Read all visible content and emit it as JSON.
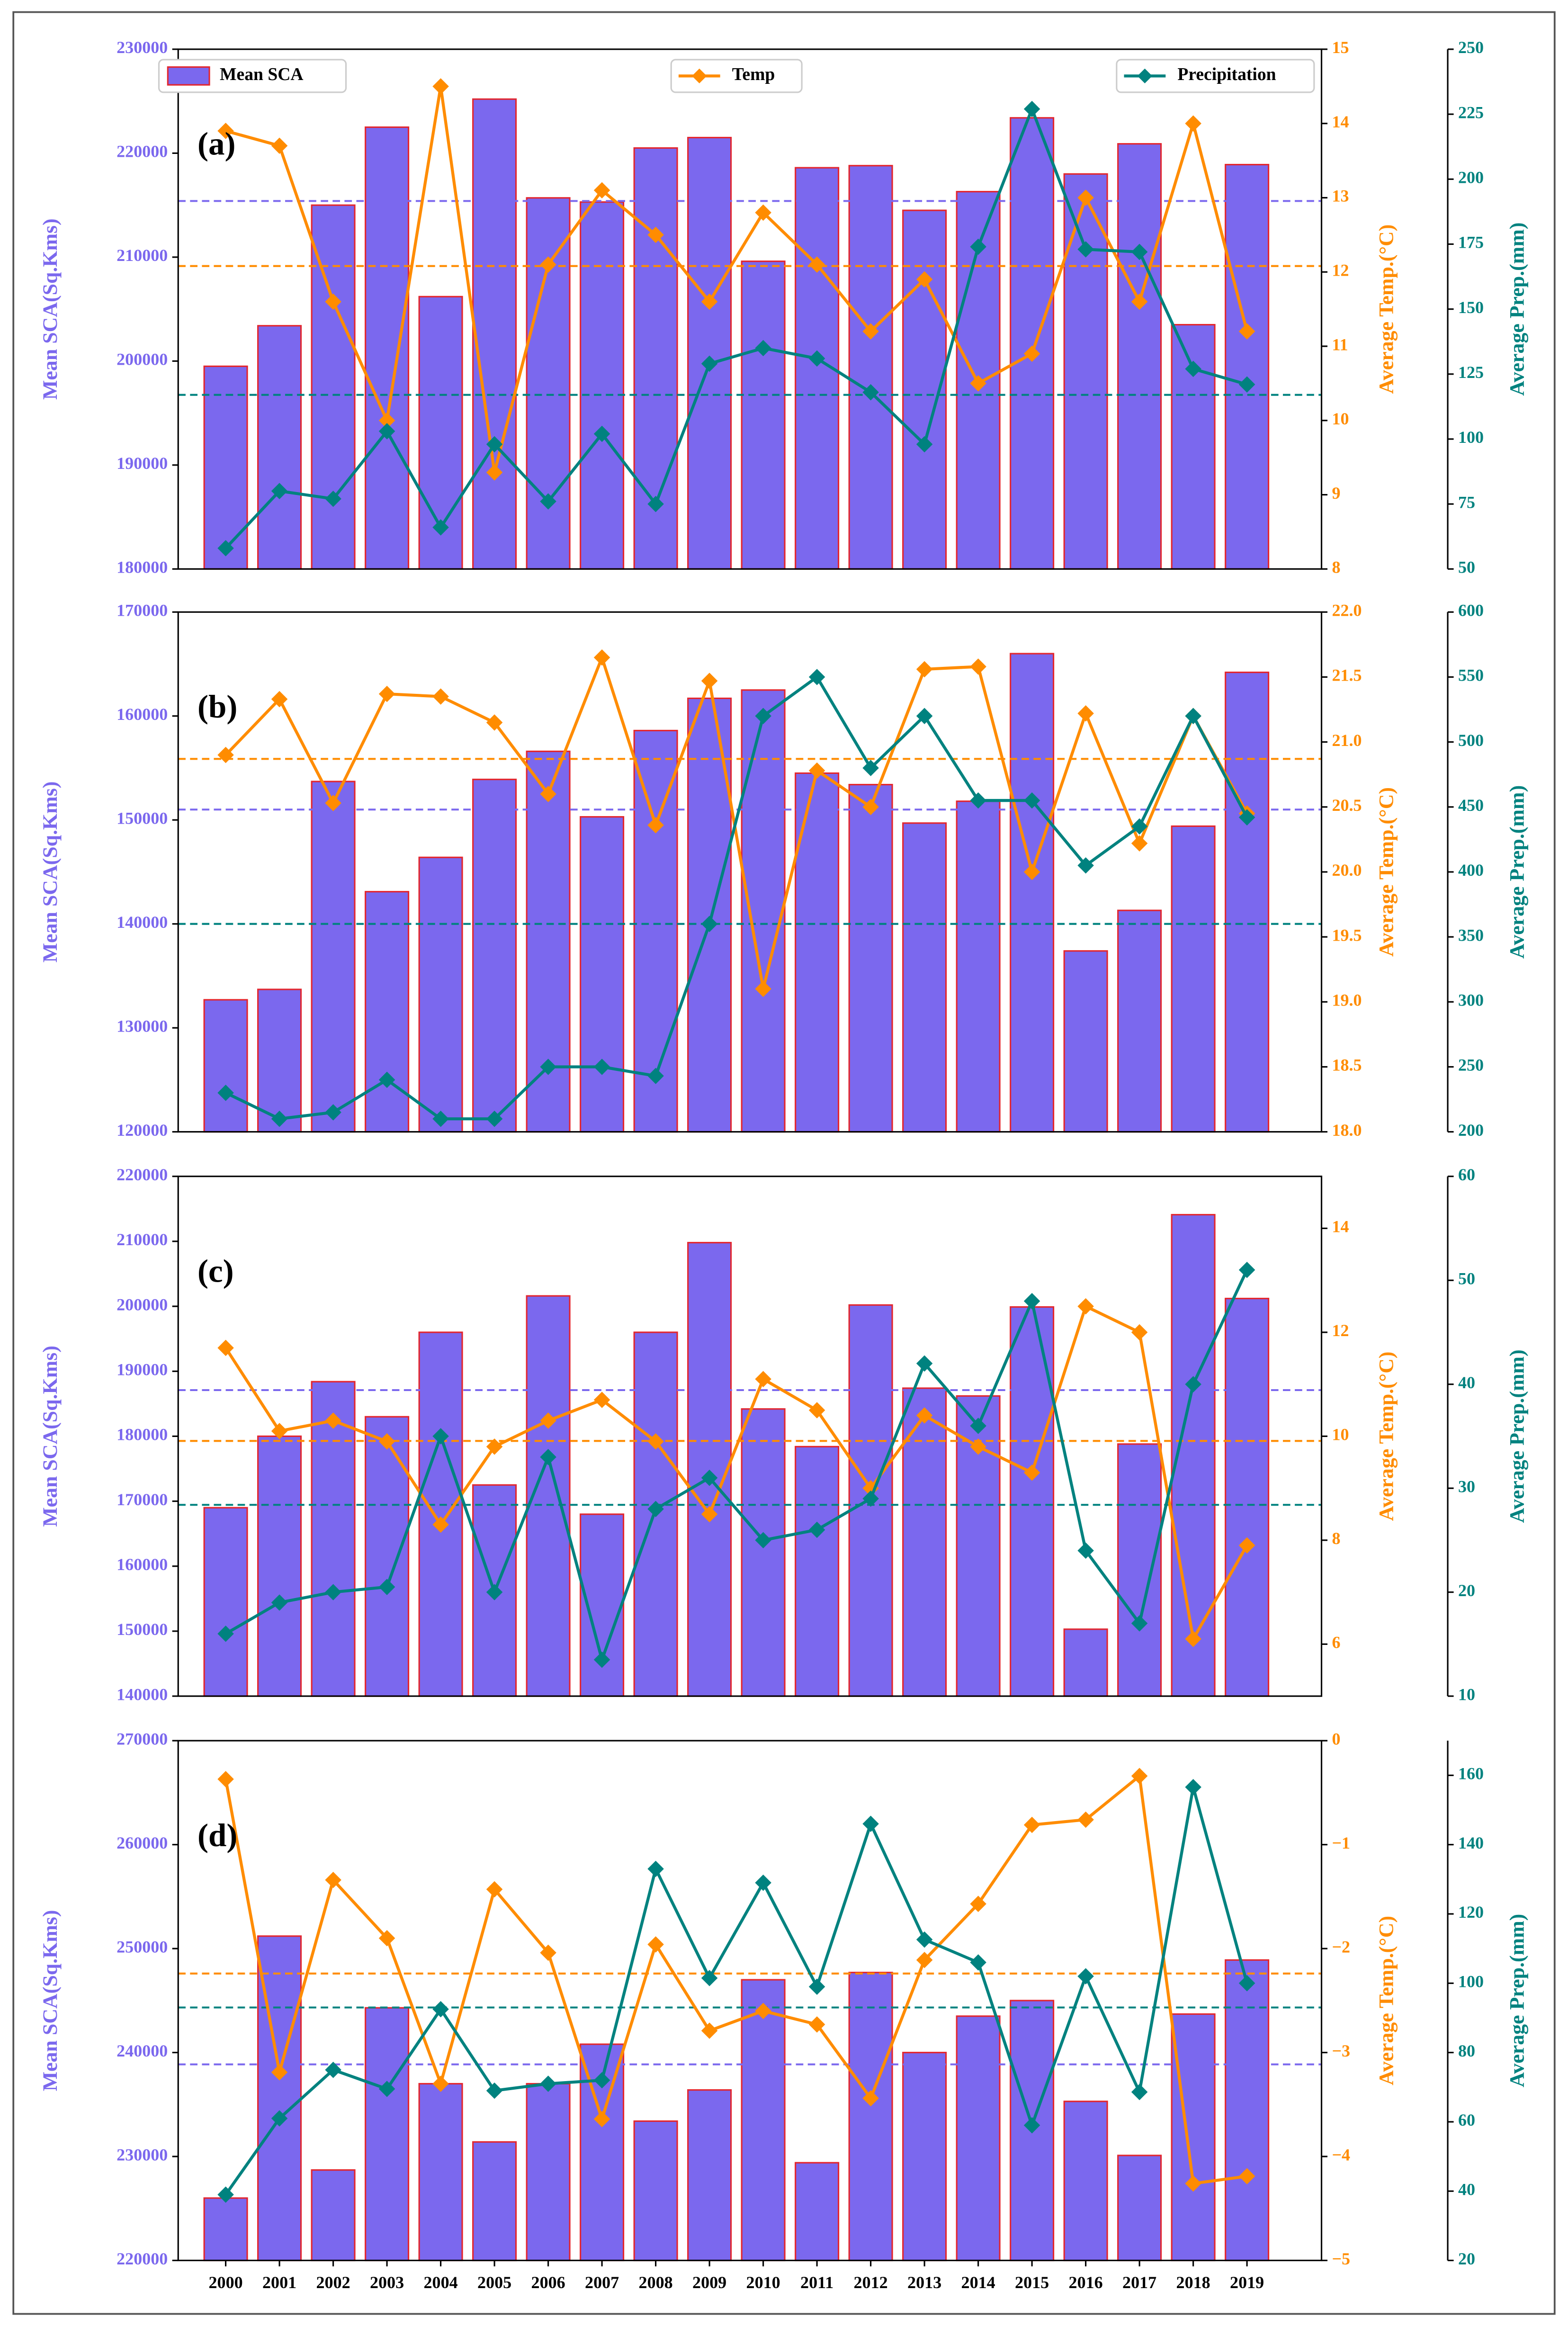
{
  "chart_data": [
    {
      "type": "bar_line",
      "label": "(a)",
      "ylabel": "Mean SCA(Sq.Kms)",
      "y2label": "Average Temp.(°C)",
      "y3label": "Average Prep.(mm)",
      "ylim": [
        180000,
        230000
      ],
      "yticks": [
        180000,
        190000,
        200000,
        210000,
        220000,
        230000
      ],
      "y2lim": [
        8,
        15
      ],
      "y2ticks": [
        8,
        9,
        10,
        11,
        12,
        13,
        14,
        15
      ],
      "y3lim": [
        50,
        250
      ],
      "y3ticks": [
        50,
        75,
        100,
        125,
        150,
        175,
        200,
        225,
        250
      ],
      "series": [
        {
          "name": "Mean SCA",
          "color": "#7b68ee",
          "edgecolor": "#e3262e",
          "values": [
            199500,
            203400,
            215000,
            222500,
            206200,
            225200,
            215700,
            215300,
            220500,
            221500,
            209600,
            218600,
            218800,
            214500,
            216300,
            223400,
            218000,
            220900,
            203500,
            218900
          ]
        },
        {
          "name": "Temp",
          "color": "#ff8c00",
          "axis": "y2",
          "values": [
            13.9,
            13.7,
            11.6,
            10.0,
            14.5,
            9.3,
            12.1,
            13.1,
            12.5,
            11.6,
            12.8,
            12.1,
            11.2,
            11.9,
            10.5,
            10.9,
            13.0,
            11.6,
            14.0,
            11.2
          ]
        },
        {
          "name": "Precipitation",
          "color": "#00827f",
          "axis": "y3",
          "values": [
            58,
            80,
            77,
            103,
            66,
            98,
            76,
            102,
            75,
            129,
            135,
            131,
            118,
            98,
            174,
            227,
            173,
            172,
            127,
            121
          ]
        }
      ],
      "mean_lines": [
        {
          "axis": "y",
          "value": 215400,
          "color": "#7b68ee"
        },
        {
          "axis": "y2",
          "value": 12.08,
          "color": "#ff8c00"
        },
        {
          "axis": "y3",
          "value": 117,
          "color": "#00827f"
        }
      ]
    },
    {
      "type": "bar_line",
      "label": "(b)",
      "ylabel": "Mean SCA(Sq.Kms)",
      "y2label": "Average Temp.(°C)",
      "y3label": "Average Prep.(mm)",
      "ylim": [
        120000,
        170000
      ],
      "yticks": [
        120000,
        130000,
        140000,
        150000,
        160000,
        170000
      ],
      "y2lim": [
        18,
        22
      ],
      "y2ticks": [
        {
          "value": 18,
          "label": "18.0"
        },
        18.5,
        {
          "value": 19,
          "label": "19.0"
        },
        19.5,
        {
          "value": 20,
          "label": "20.0"
        },
        20.5,
        {
          "value": 21,
          "label": "21.0"
        },
        21.5,
        {
          "value": 22,
          "label": "22.0"
        }
      ],
      "y3lim": [
        200,
        600
      ],
      "y3ticks": [
        200,
        250,
        300,
        350,
        400,
        450,
        500,
        550,
        600
      ],
      "series": [
        {
          "color": "#7b68ee",
          "edgecolor": "#e3262e",
          "values": [
            132700,
            133700,
            153700,
            143100,
            146400,
            153900,
            156600,
            150300,
            158600,
            161700,
            162500,
            154500,
            153400,
            149700,
            151800,
            166000,
            137400,
            141300,
            149400,
            164200
          ]
        },
        {
          "color": "#ff8c00",
          "axis": "y2",
          "values": [
            20.9,
            21.33,
            20.53,
            21.37,
            21.35,
            21.15,
            20.6,
            21.65,
            20.36,
            21.47,
            19.1,
            20.78,
            20.5,
            21.56,
            21.58,
            20.0,
            21.22,
            20.22,
            21.2,
            20.45
          ]
        },
        {
          "color": "#00827f",
          "axis": "y3",
          "values": [
            230,
            210,
            215,
            240,
            210,
            210,
            250,
            250,
            243,
            360,
            520,
            550,
            480,
            520,
            455,
            455,
            405,
            435,
            520,
            442
          ]
        }
      ],
      "mean_lines": [
        {
          "axis": "y",
          "value": 151000,
          "color": "#7b68ee"
        },
        {
          "axis": "y2",
          "value": 20.87,
          "color": "#ff8c00"
        },
        {
          "axis": "y3",
          "value": 360,
          "color": "#00827f"
        }
      ]
    },
    {
      "type": "bar_line",
      "label": "(c)",
      "ylabel": "Mean SCA(Sq.Kms)",
      "y2label": "Average Temp.(°C)",
      "y3label": "Average Prep.(mm)",
      "ylim": [
        140000,
        220000
      ],
      "yticks": [
        140000,
        150000,
        160000,
        170000,
        180000,
        190000,
        200000,
        210000,
        220000
      ],
      "y2lim": [
        5,
        15
      ],
      "y2ticks": [
        6,
        8,
        10,
        12,
        14
      ],
      "y3lim": [
        10,
        60
      ],
      "y3ticks": [
        10,
        20,
        30,
        40,
        50,
        60
      ],
      "series": [
        {
          "color": "#7b68ee",
          "edgecolor": "#e3262e",
          "values": [
            169000,
            180000,
            188400,
            183000,
            196000,
            172500,
            201600,
            168000,
            196000,
            209800,
            184200,
            178400,
            200200,
            187400,
            186200,
            199900,
            150300,
            178800,
            214100,
            201200
          ]
        },
        {
          "color": "#ff8c00",
          "axis": "y2",
          "values": [
            11.7,
            10.1,
            10.3,
            9.9,
            8.3,
            9.8,
            10.3,
            10.7,
            9.9,
            8.5,
            11.1,
            10.5,
            9.0,
            10.4,
            9.8,
            9.3,
            12.5,
            12.0,
            6.1,
            7.9
          ]
        },
        {
          "color": "#00827f",
          "axis": "y3",
          "values": [
            16,
            19,
            20,
            20.5,
            35,
            20,
            33,
            13.5,
            28,
            31,
            25,
            26,
            29,
            42,
            36,
            48,
            24,
            17,
            40,
            51
          ]
        }
      ],
      "mean_lines": [
        {
          "axis": "y",
          "value": 187100,
          "color": "#7b68ee"
        },
        {
          "axis": "y2",
          "value": 9.91,
          "color": "#ff8c00"
        },
        {
          "axis": "y3",
          "value": 28.4,
          "color": "#00827f"
        }
      ]
    },
    {
      "type": "bar_line",
      "label": "(d)",
      "ylabel": "Mean SCA(Sq.Kms)",
      "y2label": "Average Temp.(°C)",
      "y3label": "Average Prep.(mm)",
      "categories": [
        "2000",
        "2001",
        "2002",
        "2003",
        "2004",
        "2005",
        "2006",
        "2007",
        "2008",
        "2009",
        "2010",
        "2011",
        "2012",
        "2013",
        "2014",
        "2015",
        "2016",
        "2017",
        "2018",
        "2019"
      ],
      "ylim": [
        220000,
        270000
      ],
      "yticks": [
        220000,
        230000,
        240000,
        250000,
        260000,
        270000
      ],
      "y2lim": [
        -5,
        0
      ],
      "y2ticks": [
        {
          "value": -5,
          "label": "−5"
        },
        {
          "value": -4,
          "label": "−4"
        },
        {
          "value": -3,
          "label": "−3"
        },
        {
          "value": -2,
          "label": "−2"
        },
        {
          "value": -1,
          "label": "−1"
        },
        0
      ],
      "y3lim": [
        20,
        170
      ],
      "y3ticks": [
        20,
        40,
        60,
        80,
        100,
        120,
        140,
        160
      ],
      "series": [
        {
          "color": "#7b68ee",
          "edgecolor": "#e3262e",
          "values": [
            226000,
            251200,
            228700,
            244300,
            237000,
            231400,
            237000,
            240800,
            233400,
            236400,
            247000,
            229400,
            247700,
            240000,
            243500,
            245000,
            235300,
            230100,
            243700,
            248900
          ]
        },
        {
          "color": "#ff8c00",
          "axis": "y2",
          "values": [
            -0.37,
            -3.19,
            -1.34,
            -1.9,
            -3.3,
            -1.43,
            -2.04,
            -3.64,
            -1.96,
            -2.79,
            -2.6,
            -2.73,
            -3.44,
            -2.11,
            -1.57,
            -0.81,
            -0.76,
            -0.34,
            -4.26,
            -4.19
          ]
        },
        {
          "color": "#00827f",
          "axis": "y3",
          "values": [
            39,
            61,
            75,
            69.5,
            92.5,
            69,
            71,
            72,
            133,
            101.5,
            129,
            99,
            146,
            112.6,
            106,
            59,
            102,
            68.6,
            156.6,
            100
          ]
        }
      ],
      "mean_lines": [
        {
          "axis": "y",
          "value": 238860,
          "color": "#7b68ee"
        },
        {
          "axis": "y2",
          "value": -2.24,
          "color": "#ff8c00"
        },
        {
          "axis": "y3",
          "value": 93,
          "color": "#00827f"
        }
      ]
    }
  ]
}
